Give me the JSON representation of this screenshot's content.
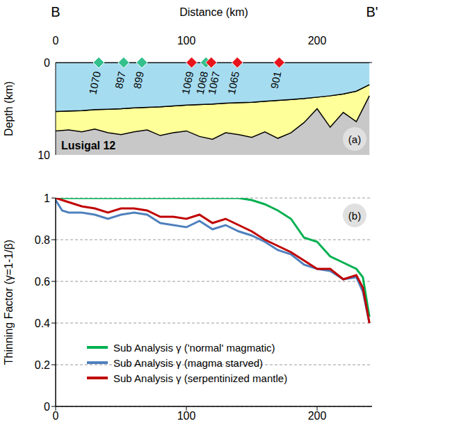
{
  "chart_data": [
    {
      "type": "area",
      "x_label": "Distance (km)",
      "y_label": "Depth (km)",
      "annotations": {
        "start": "B",
        "end": "B'",
        "panel": "(a)",
        "profile": "Lusigal 12"
      },
      "xlim": [
        0,
        242
      ],
      "xticks": [
        0,
        100,
        200
      ],
      "ylim": [
        0,
        10
      ],
      "yticks": [
        0,
        10
      ],
      "x": [
        0,
        10,
        20,
        30,
        40,
        50,
        60,
        70,
        80,
        90,
        100,
        110,
        120,
        130,
        140,
        150,
        160,
        170,
        180,
        190,
        200,
        210,
        220,
        230,
        240
      ],
      "seafloor_depth": [
        5.3,
        5.25,
        5.2,
        5.1,
        5.05,
        5.0,
        4.9,
        4.85,
        4.8,
        4.7,
        4.6,
        4.55,
        4.5,
        4.4,
        4.35,
        4.3,
        4.2,
        4.1,
        4.0,
        3.9,
        3.75,
        3.6,
        3.4,
        3.1,
        2.4
      ],
      "basement_depth": [
        7.4,
        7.3,
        7.5,
        7.2,
        7.6,
        7.8,
        7.5,
        7.3,
        7.9,
        7.6,
        7.4,
        8.0,
        8.3,
        7.6,
        7.8,
        8.1,
        7.5,
        8.2,
        7.6,
        6.5,
        5.0,
        7.0,
        5.4,
        6.4,
        3.6
      ],
      "colors": [
        "#a6dcf0",
        "#ffff99",
        "#c8c8c8"
      ],
      "marker": "diamond",
      "sites": [
        {
          "label": "1070",
          "x": 33,
          "color": "#33c08d"
        },
        {
          "label": "897",
          "x": 52,
          "color": "#33c08d"
        },
        {
          "label": "899",
          "x": 66,
          "color": "#33c08d"
        },
        {
          "label": "1069",
          "x": 104,
          "color": "#e8141b"
        },
        {
          "label": "1068",
          "x": 115,
          "color": "#33c08d"
        },
        {
          "label": "1067",
          "x": 119,
          "color": "#e8141b"
        },
        {
          "label": "1065",
          "x": 139,
          "color": "#e8141b"
        },
        {
          "label": "901",
          "x": 171,
          "color": "#e8141b"
        }
      ]
    },
    {
      "type": "line",
      "y_label": "Thinning Factor (γ=1-1/β)",
      "annotations": {
        "panel": "(b)"
      },
      "xlim": [
        0,
        242
      ],
      "xticks": [
        0,
        100,
        200
      ],
      "ylim": [
        0,
        1
      ],
      "yticks": [
        0,
        0.2,
        0.4,
        0.6,
        0.8,
        1
      ],
      "grid": true,
      "legend": "lower left",
      "x": [
        0,
        5,
        10,
        20,
        30,
        40,
        50,
        60,
        70,
        80,
        90,
        100,
        110,
        120,
        130,
        140,
        150,
        160,
        170,
        180,
        190,
        200,
        210,
        220,
        230,
        235,
        240
      ],
      "series": [
        {
          "name": "Sub Analysis γ ('normal' magmatic)",
          "color": "#00b050",
          "values": [
            1,
            1,
            1,
            1,
            1,
            1,
            1,
            1,
            1,
            1,
            1,
            1,
            1,
            1,
            1,
            1,
            0.99,
            0.97,
            0.94,
            0.9,
            0.81,
            0.79,
            0.72,
            0.69,
            0.66,
            0.62,
            0.43
          ]
        },
        {
          "name": "Sub Analysis γ (magma starved)",
          "color": "#4f81bd",
          "values": [
            0.99,
            0.94,
            0.93,
            0.93,
            0.92,
            0.9,
            0.92,
            0.93,
            0.92,
            0.88,
            0.87,
            0.86,
            0.89,
            0.85,
            0.87,
            0.84,
            0.82,
            0.79,
            0.75,
            0.73,
            0.68,
            0.66,
            0.65,
            0.61,
            0.62,
            0.55,
            0.4
          ]
        },
        {
          "name": "Sub Analysis γ (serpentinized mantle)",
          "color": "#c00000",
          "values": [
            1,
            0.99,
            0.98,
            0.96,
            0.95,
            0.93,
            0.95,
            0.95,
            0.94,
            0.91,
            0.91,
            0.9,
            0.92,
            0.88,
            0.9,
            0.87,
            0.84,
            0.8,
            0.77,
            0.74,
            0.7,
            0.66,
            0.66,
            0.61,
            0.63,
            0.57,
            0.4
          ]
        }
      ]
    }
  ]
}
